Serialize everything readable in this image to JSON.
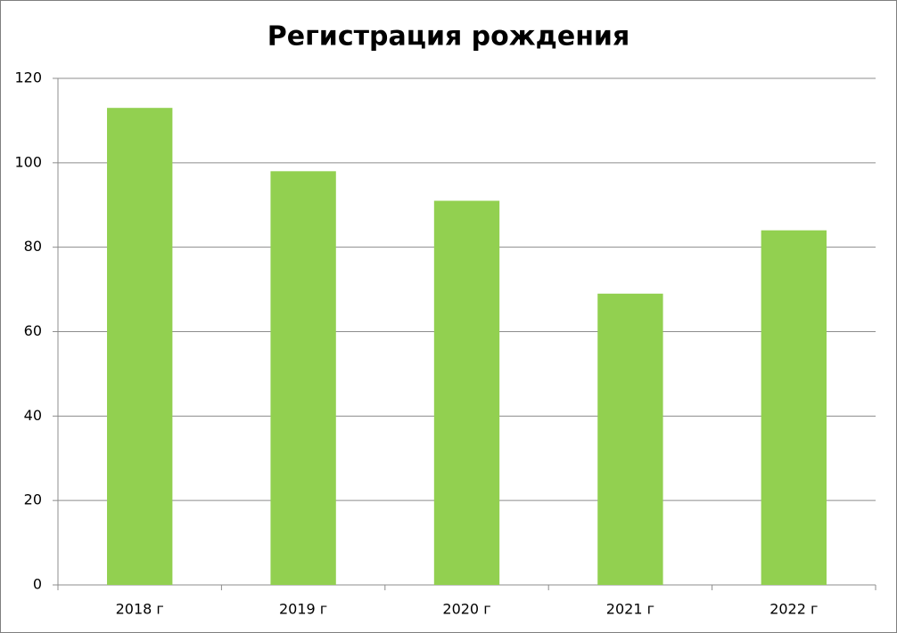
{
  "chart_data": {
    "type": "bar",
    "title": "Регистрация рождения",
    "categories": [
      "2018 г",
      "2019 г",
      "2020 г",
      "2021 г",
      "2022 г"
    ],
    "values": [
      113,
      98,
      91,
      69,
      84
    ],
    "color": "#92d050",
    "ylim": [
      0,
      120
    ],
    "yticks": [
      0,
      20,
      40,
      60,
      80,
      100,
      120
    ],
    "grid": true
  }
}
